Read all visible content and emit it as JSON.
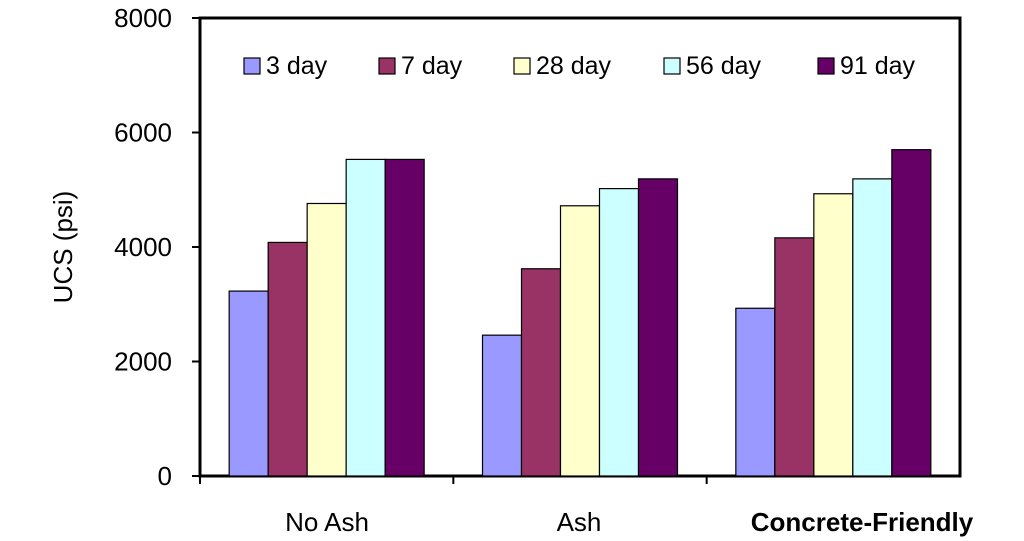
{
  "chart_data": {
    "type": "bar",
    "categories": [
      "No Ash",
      "Ash",
      "Concrete-Friendly"
    ],
    "series": [
      {
        "name": "3 day",
        "color": "#9999ff",
        "values": [
          3230,
          2460,
          2930
        ]
      },
      {
        "name": "7 day",
        "color": "#993366",
        "values": [
          4080,
          3620,
          4160
        ]
      },
      {
        "name": "28 day",
        "color": "#ffffcc",
        "values": [
          4760,
          4720,
          4930
        ]
      },
      {
        "name": "56 day",
        "color": "#ccffff",
        "values": [
          5530,
          5020,
          5190
        ]
      },
      {
        "name": "91 day",
        "color": "#660066",
        "values": [
          5530,
          5190,
          5700
        ]
      }
    ],
    "ylabel": "UCS (psi)",
    "ylim": [
      0,
      8000
    ],
    "yticks": [
      "0",
      "2000",
      "4000",
      "6000",
      "8000"
    ],
    "legend_position": "top",
    "grid": false
  }
}
